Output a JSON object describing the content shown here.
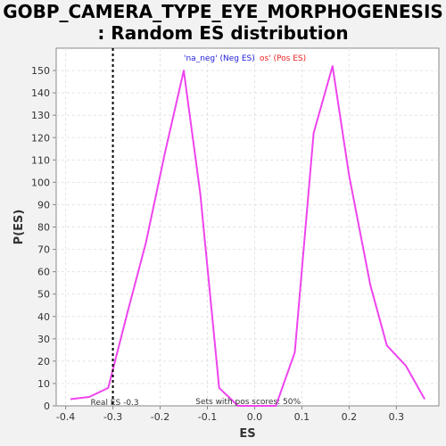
{
  "title_line1": "GOBP_CAMERA_TYPE_EYE_MORPHOGENESIS",
  "title_line2": ": Random ES distribution",
  "chart_data": {
    "type": "line",
    "xlabel": "ES",
    "ylabel": "P(ES)",
    "xlim": [
      -0.42,
      0.39
    ],
    "ylim": [
      0,
      160
    ],
    "xticks": [
      -0.4,
      -0.3,
      -0.2,
      -0.1,
      0.0,
      0.1,
      0.2,
      0.3
    ],
    "xtick_labels": [
      "-0.4",
      "-0.3",
      "-0.2",
      "-0.1",
      "0.0",
      "0.1",
      "0.2",
      "0.3"
    ],
    "yticks": [
      0,
      10,
      20,
      30,
      40,
      50,
      60,
      70,
      80,
      90,
      100,
      110,
      120,
      130,
      140,
      150
    ],
    "grid": true,
    "series": [
      {
        "color": "#ee44ee",
        "x": [
          -0.39,
          -0.35,
          -0.31,
          -0.27,
          -0.23,
          -0.19,
          -0.15,
          -0.115,
          -0.075,
          -0.035,
          0.0,
          0.045,
          0.085,
          0.125,
          0.165,
          0.2,
          0.245,
          0.28,
          0.32,
          0.36
        ],
        "y": [
          3,
          4,
          8,
          41,
          73,
          113,
          150,
          95,
          8,
          0,
          0,
          0,
          24,
          122,
          152,
          103,
          54,
          27,
          18,
          3
        ]
      }
    ],
    "real_es": -0.3,
    "real_es_label": "Real ES -0.3",
    "legend": {
      "neg_text": "'na_neg' (Neg ES)",
      "pos_text": "os' (Pos ES)",
      "neg_color": "#2222dd",
      "pos_color": "#ee2222"
    },
    "annotation": "Sets with pos scores: 50%"
  }
}
